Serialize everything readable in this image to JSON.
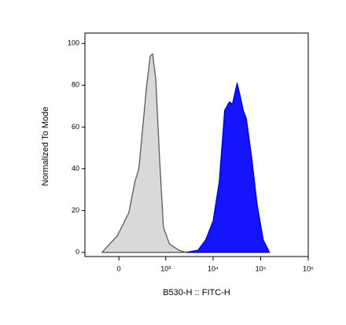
{
  "chart_data": {
    "type": "histogram",
    "xlabel": "B530-H :: FITC-H",
    "ylabel": "Normalized To Mode",
    "xscale": "biexponential",
    "xlim": [
      -520,
      1000000
    ],
    "xticks": [
      0,
      {
        "value": 1000,
        "label": "10³"
      },
      {
        "value": 10000,
        "label": "10⁴"
      },
      {
        "value": 100000,
        "label": "10⁵"
      },
      {
        "value": 1000000,
        "label": "10⁶"
      }
    ],
    "ylim": [
      -2,
      105
    ],
    "yticks": [
      0,
      20,
      40,
      60,
      80,
      100
    ],
    "series": [
      {
        "color": "#d9d9d9",
        "edge": "#5a5a5a",
        "x": [
          -190,
          -15,
          105,
          180,
          235,
          300,
          370,
          455,
          515,
          605,
          735,
          890,
          1200,
          1900,
          2750
        ],
        "values": [
          0,
          8,
          19,
          34,
          40,
          60,
          79,
          94,
          95,
          83,
          45,
          12,
          4,
          1,
          0
        ]
      },
      {
        "color": "#1414ff",
        "edge": "#0000c8",
        "x": [
          2750,
          4800,
          7000,
          10000,
          13500,
          17500,
          22000,
          25500,
          32000,
          37000,
          43000,
          50000,
          65000,
          84000,
          113000,
          153000
        ],
        "values": [
          0,
          1,
          6,
          15,
          34,
          68,
          72,
          71,
          81,
          75,
          68,
          64,
          45,
          23,
          6,
          0
        ]
      }
    ]
  }
}
